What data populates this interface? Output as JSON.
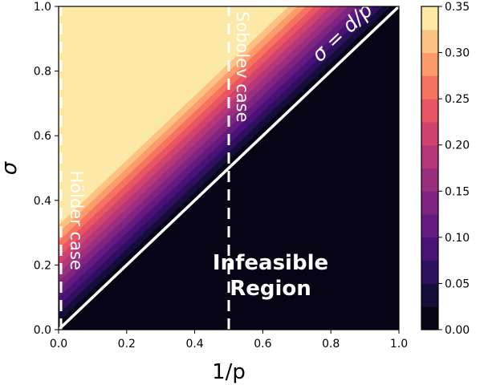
{
  "chart_data": {
    "type": "heatmap",
    "title": "",
    "xlabel": "1/p",
    "ylabel": "σ",
    "xlim": [
      0.0,
      1.0
    ],
    "ylim": [
      0.0,
      1.0
    ],
    "x_ticks": [
      "0.0",
      "0.2",
      "0.4",
      "0.6",
      "0.8",
      "1.0"
    ],
    "y_ticks": [
      "0.0",
      "0.2",
      "0.4",
      "0.6",
      "0.8",
      "1.0"
    ],
    "field": "level = sigma - d/p, constant along lines parallel to sigma = d/p; 0 on the boundary rising to about 0.35 at (0, 1)",
    "colorbar": {
      "colormap": "magma",
      "range": [
        0.0,
        0.35
      ],
      "step": 0.025,
      "ticks": [
        "0.00",
        "0.05",
        "0.10",
        "0.15",
        "0.20",
        "0.25",
        "0.30",
        "0.35"
      ]
    },
    "level_colors": [
      "#000004",
      "#0c0826",
      "#221150",
      "#3b0f70",
      "#57157e",
      "#721f81",
      "#8c2981",
      "#a8327d",
      "#c43c75",
      "#de4968",
      "#f1605d",
      "#fb8761",
      "#feaf77",
      "#fcd38f",
      "#fcfdbf"
    ],
    "lines": [
      {
        "name": "boundary",
        "from": [
          0.0,
          0.0
        ],
        "to": [
          1.0,
          1.0
        ],
        "style": "solid",
        "color": "#ffffff"
      },
      {
        "name": "sobolev",
        "from": [
          0.5,
          0.0
        ],
        "to": [
          0.5,
          1.0
        ],
        "style": "dashed",
        "color": "#ffffff"
      },
      {
        "name": "holder",
        "from": [
          0.0,
          0.0
        ],
        "to": [
          0.0,
          1.0
        ],
        "style": "dashed",
        "color": "#ffffff"
      }
    ],
    "annotations": {
      "sobolev_label": "Sobolev case",
      "holder_label": "Hölder case",
      "boundary_label": "σ = d/p",
      "region_line1": "Infeasible",
      "region_line2": "Region"
    }
  }
}
